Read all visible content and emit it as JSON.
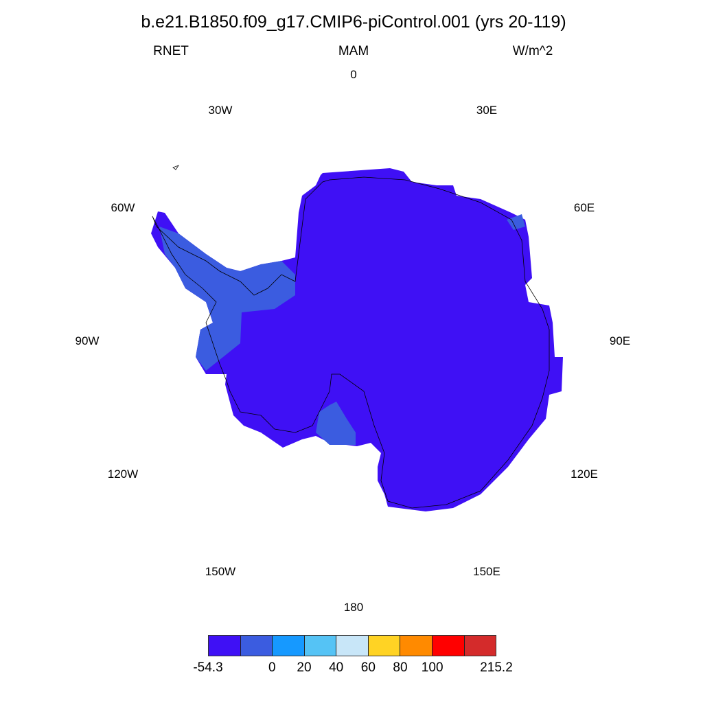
{
  "title": "b.e21.B1850.f09_g17.CMIP6-piControl.001 (yrs 20-119)",
  "variable": "RNET",
  "season": "MAM",
  "units": "W/m^2",
  "longitude_labels": [
    "0",
    "30E",
    "60E",
    "90E",
    "120E",
    "150E",
    "180",
    "150W",
    "120W",
    "90W",
    "60W",
    "30W"
  ],
  "projection": "south polar stereographic",
  "colorbar": {
    "colors": [
      "#3f10f5",
      "#3b5ce0",
      "#1699ff",
      "#55c3f5",
      "#c8e6f8",
      "#ffd324",
      "#ff8a00",
      "#ff0000",
      "#d42b2b"
    ],
    "labels": [
      "-54.3",
      "",
      "0",
      "20",
      "40",
      "60",
      "80",
      "100",
      "",
      "215.2"
    ]
  },
  "field_colors": {
    "dominant": "#3f10f5",
    "secondary": "#3b5ce0",
    "tertiary": "#1699ff"
  }
}
